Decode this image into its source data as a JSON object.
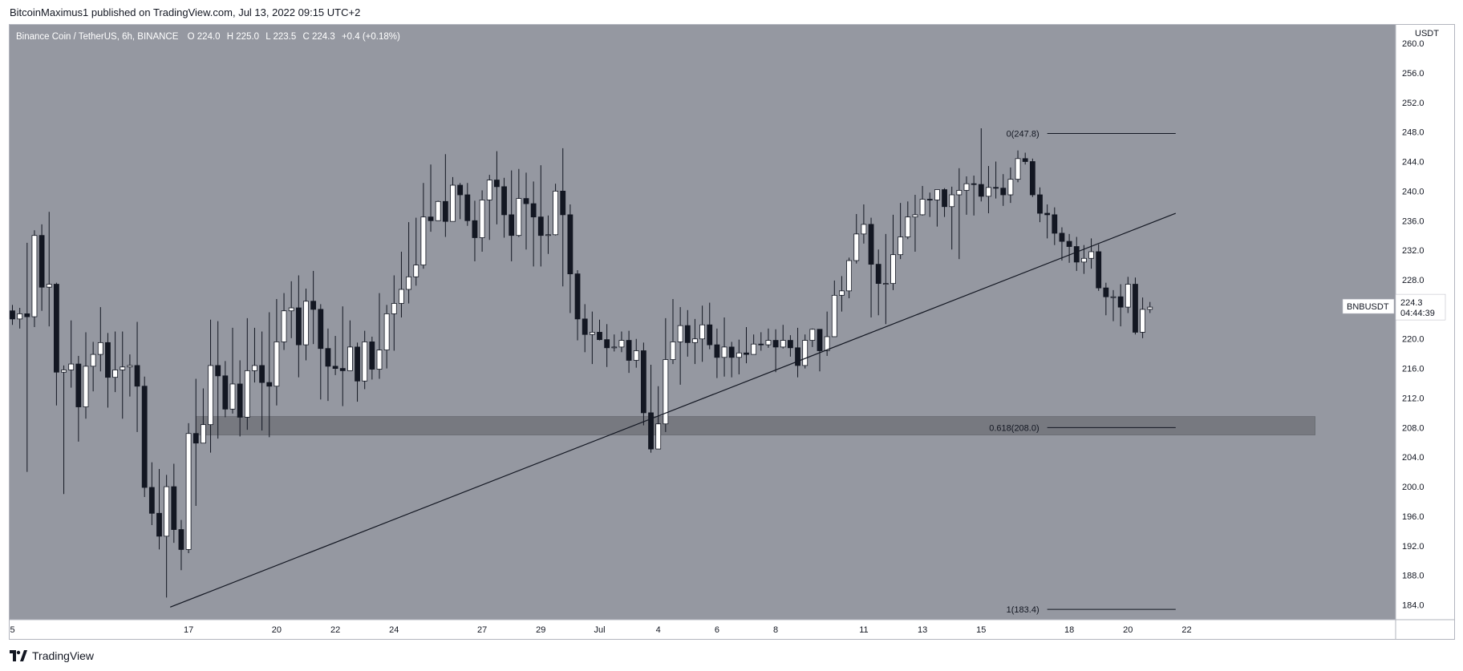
{
  "header": {
    "published_text": "BitcoinMaximus1 published on TradingView.com, Jul 13, 2022 09:15 UTC+2"
  },
  "footer": {
    "brand": "TradingView",
    "logo_icon": "tradingview-logo-icon"
  },
  "colors": {
    "plot_bg": "#9598a1",
    "axis_bg": "#ffffff",
    "candle_up": "#ffffff",
    "candle_down": "#131722",
    "wick": "#131722",
    "text": "#131722",
    "zone": "#6d6f76"
  },
  "chart_data": {
    "type": "candlestick",
    "symbol_line": {
      "title": "Binance Coin / TetherUS, 6h, BINANCE",
      "o_label": "O",
      "o_value": "224.0",
      "h_label": "H",
      "h_value": "225.0",
      "l_label": "L",
      "l_value": "223.5",
      "c_label": "C",
      "c_value": "224.3",
      "change": "+0.4 (+0.18%)"
    },
    "currency": "USDT",
    "price_axis_ticks": [
      "260.0",
      "256.0",
      "252.0",
      "248.0",
      "244.0",
      "240.0",
      "236.0",
      "232.0",
      "228.0",
      "224.0",
      "220.0",
      "216.0",
      "212.0",
      "208.0",
      "204.0",
      "200.0",
      "196.0",
      "192.0",
      "188.0",
      "184.0"
    ],
    "ylim": [
      182.0,
      262.5
    ],
    "time_axis": {
      "labels": [
        "5",
        "17",
        "20",
        "22",
        "24",
        "27",
        "29",
        "Jul",
        "4",
        "6",
        "8",
        "11",
        "13",
        "15",
        "18",
        "20",
        "22"
      ],
      "positions": [
        0,
        6,
        9,
        11,
        13,
        16,
        18,
        20,
        22,
        24,
        26,
        29,
        31,
        33,
        36,
        38,
        40
      ],
      "day_scale": 4
    },
    "last_price": {
      "symbol": "BNBUSDT",
      "price": "224.3",
      "price_value": 224.3,
      "countdown": "04:44:39"
    },
    "candles": [
      [
        223.8,
        222.7,
        224.6,
        221.9
      ],
      [
        222.7,
        223.4,
        224.2,
        221.4
      ],
      [
        223.4,
        223.0,
        233.0,
        202.0
      ],
      [
        223.0,
        234.0,
        234.7,
        221.6
      ],
      [
        234.0,
        227.0,
        235.5,
        223.8
      ],
      [
        227.0,
        227.4,
        237.2,
        221.7
      ],
      [
        227.4,
        215.5,
        227.6,
        211.0
      ],
      [
        215.5,
        215.8,
        216.4,
        199.0
      ],
      [
        215.8,
        216.6,
        222.5,
        213.4
      ],
      [
        216.6,
        210.8,
        217.7,
        206.1
      ],
      [
        210.8,
        216.3,
        220.9,
        209.2
      ],
      [
        216.3,
        217.9,
        219.6,
        212.9
      ],
      [
        217.9,
        219.5,
        224.3,
        215.6
      ],
      [
        219.5,
        214.8,
        220.8,
        210.7
      ],
      [
        214.8,
        215.8,
        221.0,
        212.8
      ],
      [
        215.8,
        216.2,
        221.0,
        209.2
      ],
      [
        216.2,
        216.4,
        217.9,
        212.2
      ],
      [
        216.4,
        213.6,
        222.3,
        207.4
      ],
      [
        213.6,
        199.9,
        214.9,
        198.6
      ],
      [
        199.9,
        196.4,
        203.3,
        194.8
      ],
      [
        196.4,
        193.3,
        202.4,
        191.5
      ],
      [
        193.3,
        200.0,
        201.6,
        185.0
      ],
      [
        200.0,
        194.2,
        203.1,
        192.4
      ],
      [
        194.2,
        191.5,
        195.5,
        188.7
      ],
      [
        191.5,
        207.2,
        208.6,
        191.0
      ],
      [
        207.2,
        205.9,
        214.6,
        197.4
      ],
      [
        205.9,
        208.4,
        213.3,
        206.0
      ],
      [
        208.4,
        216.4,
        222.6,
        204.6
      ],
      [
        216.4,
        215.0,
        222.4,
        206.5
      ],
      [
        215.0,
        210.5,
        217.0,
        209.4
      ],
      [
        210.5,
        213.9,
        221.5,
        209.9
      ],
      [
        213.9,
        209.4,
        217.1,
        206.8
      ],
      [
        209.4,
        215.7,
        222.8,
        207.7
      ],
      [
        215.7,
        216.4,
        221.5,
        214.1
      ],
      [
        216.4,
        214.1,
        221.0,
        207.6
      ],
      [
        214.1,
        213.6,
        223.6,
        206.7
      ],
      [
        213.6,
        219.6,
        225.4,
        211.0
      ],
      [
        219.6,
        223.8,
        226.2,
        218.5
      ],
      [
        223.8,
        224.2,
        227.8,
        220.1
      ],
      [
        224.2,
        219.2,
        228.6,
        214.8
      ],
      [
        219.2,
        225.1,
        226.8,
        217.1
      ],
      [
        225.1,
        224.0,
        229.2,
        219.3
      ],
      [
        224.0,
        218.7,
        224.7,
        211.8
      ],
      [
        218.7,
        216.3,
        221.4,
        211.6
      ],
      [
        216.3,
        216.0,
        220.4,
        215.1
      ],
      [
        216.0,
        215.7,
        224.4,
        210.9
      ],
      [
        215.7,
        218.9,
        222.5,
        216.6
      ],
      [
        218.9,
        214.3,
        219.5,
        211.5
      ],
      [
        214.3,
        219.6,
        221.1,
        213.2
      ],
      [
        219.6,
        215.9,
        220.3,
        214.5
      ],
      [
        215.9,
        218.5,
        226.2,
        214.6
      ],
      [
        218.5,
        223.4,
        224.6,
        216.0
      ],
      [
        223.4,
        224.8,
        228.6,
        218.4
      ],
      [
        224.8,
        226.7,
        231.8,
        222.9
      ],
      [
        226.7,
        228.4,
        235.8,
        224.8
      ],
      [
        228.4,
        230.0,
        236.4,
        227.2
      ],
      [
        230.0,
        236.5,
        241.1,
        229.5
      ],
      [
        236.5,
        236.0,
        243.6,
        234.5
      ],
      [
        236.0,
        238.6,
        238.7,
        237.0
      ],
      [
        238.6,
        235.9,
        245.0,
        233.8
      ],
      [
        235.9,
        240.8,
        241.9,
        237.5
      ],
      [
        240.8,
        239.5,
        241.1,
        236.2
      ],
      [
        239.5,
        236.0,
        241.1,
        235.3
      ],
      [
        236.0,
        233.7,
        238.7,
        230.5
      ],
      [
        233.7,
        238.8,
        240.1,
        231.8
      ],
      [
        238.8,
        241.5,
        242.2,
        233.4
      ],
      [
        241.5,
        240.6,
        245.4,
        235.5
      ],
      [
        240.6,
        236.8,
        241.8,
        233.7
      ],
      [
        236.8,
        234.0,
        242.8,
        230.5
      ],
      [
        234.0,
        239.0,
        243.0,
        233.8
      ],
      [
        239.0,
        238.3,
        242.5,
        232.1
      ],
      [
        238.3,
        236.5,
        241.3,
        229.8
      ],
      [
        236.5,
        234.0,
        243.5,
        229.8
      ],
      [
        234.0,
        234.1,
        236.7,
        231.5
      ],
      [
        234.1,
        240.0,
        241.0,
        234.0
      ],
      [
        240.0,
        236.8,
        245.8,
        227.1
      ],
      [
        236.8,
        228.8,
        238.2,
        223.5
      ],
      [
        228.8,
        222.7,
        229.3,
        219.8
      ],
      [
        222.7,
        220.6,
        224.7,
        218.2
      ],
      [
        220.6,
        220.9,
        223.7,
        216.6
      ],
      [
        220.9,
        219.9,
        222.6,
        219.8
      ],
      [
        219.9,
        218.8,
        222.0,
        216.2
      ],
      [
        218.8,
        218.9,
        220.6,
        218.3
      ],
      [
        218.9,
        219.8,
        221.0,
        218.2
      ],
      [
        219.8,
        217.1,
        221.1,
        215.4
      ],
      [
        217.1,
        218.4,
        220.0,
        216.1
      ],
      [
        218.4,
        210.0,
        219.5,
        208.3
      ],
      [
        210.0,
        205.1,
        216.5,
        204.6
      ],
      [
        205.1,
        208.5,
        213.6,
        208.3
      ],
      [
        208.5,
        217.2,
        222.8,
        207.4
      ],
      [
        217.2,
        219.6,
        225.4,
        216.6
      ],
      [
        219.6,
        221.8,
        224.3,
        213.8
      ],
      [
        221.8,
        219.5,
        223.9,
        217.6
      ],
      [
        219.5,
        220.0,
        222.7,
        216.6
      ],
      [
        220.0,
        221.9,
        224.5,
        216.9
      ],
      [
        221.9,
        219.2,
        224.9,
        218.6
      ],
      [
        219.2,
        217.5,
        221.4,
        214.7
      ],
      [
        217.5,
        218.9,
        222.9,
        214.9
      ],
      [
        218.9,
        217.5,
        219.6,
        214.8
      ],
      [
        217.5,
        218.1,
        219.9,
        215.2
      ],
      [
        218.1,
        217.9,
        221.6,
        216.7
      ],
      [
        217.9,
        219.3,
        220.6,
        218.0
      ],
      [
        219.3,
        219.2,
        220.9,
        218.4
      ],
      [
        219.2,
        219.8,
        221.4,
        218.8
      ],
      [
        219.8,
        218.9,
        221.3,
        215.5
      ],
      [
        218.9,
        219.8,
        221.9,
        218.7
      ],
      [
        219.8,
        218.8,
        220.5,
        217.6
      ],
      [
        218.8,
        216.4,
        221.5,
        214.8
      ],
      [
        216.4,
        219.8,
        220.6,
        216.0
      ],
      [
        219.8,
        221.3,
        221.4,
        218.9
      ],
      [
        221.3,
        218.4,
        220.6,
        215.6
      ],
      [
        218.4,
        220.3,
        223.7,
        217.7
      ],
      [
        220.3,
        225.9,
        227.9,
        220.7
      ],
      [
        225.9,
        226.5,
        228.5,
        223.7
      ],
      [
        226.5,
        230.6,
        231.0,
        225.5
      ],
      [
        230.6,
        234.2,
        236.9,
        230.2
      ],
      [
        234.2,
        235.5,
        238.2,
        232.9
      ],
      [
        235.5,
        230.1,
        236.4,
        222.9
      ],
      [
        230.1,
        227.5,
        232.1,
        223.2
      ],
      [
        227.5,
        227.5,
        234.2,
        222.0
      ],
      [
        227.5,
        231.4,
        236.8,
        226.6
      ],
      [
        231.4,
        233.8,
        238.4,
        230.8
      ],
      [
        233.8,
        236.5,
        238.6,
        233.5
      ],
      [
        236.5,
        236.8,
        239.5,
        231.8
      ],
      [
        236.8,
        238.9,
        240.7,
        236.7
      ],
      [
        238.9,
        238.8,
        239.8,
        236.5
      ],
      [
        238.8,
        240.2,
        240.0,
        235.2
      ],
      [
        240.2,
        237.9,
        240.4,
        236.5
      ],
      [
        237.9,
        239.5,
        240.6,
        232.1
      ],
      [
        239.5,
        240.1,
        243.1,
        230.8
      ],
      [
        240.1,
        241.0,
        242.0,
        236.8
      ],
      [
        241.0,
        240.9,
        242.1,
        236.7
      ],
      [
        240.9,
        239.3,
        248.5,
        238.6
      ],
      [
        239.3,
        240.5,
        243.4,
        237.0
      ],
      [
        240.5,
        240.4,
        244.0,
        239.0
      ],
      [
        240.4,
        239.5,
        242.3,
        238.0
      ],
      [
        239.5,
        241.6,
        243.2,
        238.4
      ],
      [
        241.6,
        244.4,
        245.5,
        241.2
      ],
      [
        244.4,
        244.0,
        245.2,
        243.6
      ],
      [
        244.0,
        239.5,
        244.4,
        239.2
      ],
      [
        239.5,
        237.0,
        240.5,
        235.8
      ],
      [
        237.0,
        236.8,
        238.2,
        233.6
      ],
      [
        236.8,
        234.3,
        237.8,
        232.7
      ],
      [
        234.3,
        233.2,
        235.1,
        230.6
      ],
      [
        233.2,
        232.5,
        234.2,
        230.3
      ],
      [
        232.5,
        230.4,
        233.8,
        229.2
      ],
      [
        230.4,
        230.9,
        232.7,
        228.8
      ],
      [
        230.9,
        231.8,
        233.6,
        229.5
      ],
      [
        231.8,
        226.9,
        232.8,
        226.5
      ],
      [
        226.9,
        225.7,
        227.6,
        223.2
      ],
      [
        225.7,
        225.7,
        226.6,
        222.4
      ],
      [
        225.7,
        224.3,
        227.4,
        221.7
      ],
      [
        224.3,
        227.4,
        228.4,
        223.5
      ],
      [
        227.4,
        220.9,
        228.3,
        220.6
      ],
      [
        220.9,
        224.0,
        225.6,
        220.1
      ],
      [
        224.0,
        224.3,
        225.0,
        223.5
      ]
    ],
    "trendline": {
      "from": [
        21.5,
        183.7
      ],
      "to": [
        158.5,
        237.0
      ]
    },
    "support_zone": {
      "x_from": 25,
      "x_to": 177.5,
      "y_low": 207.0,
      "y_high": 209.5
    },
    "fibonacci": [
      {
        "label": "0(247.8)",
        "value": 247.8
      },
      {
        "label": "0.618(208.0)",
        "value": 208.0
      },
      {
        "label": "1(183.4)",
        "value": 183.4
      }
    ],
    "fib_x_range": [
      141,
      158.5
    ]
  }
}
